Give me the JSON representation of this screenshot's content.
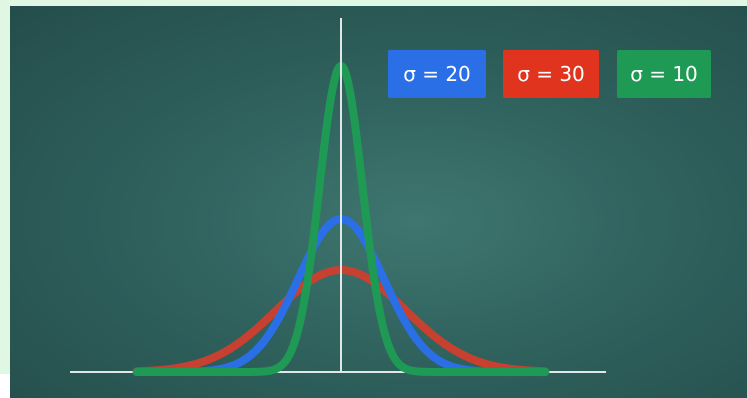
{
  "chart_data": {
    "type": "line",
    "title": "",
    "xlabel": "",
    "ylabel": "",
    "xlim": [
      -100,
      100
    ],
    "series": [
      {
        "name": "σ = 20",
        "color": "#2a6fe6",
        "mean": 0,
        "sigma": 20
      },
      {
        "name": "σ = 30",
        "color": "#c84030",
        "mean": 0,
        "sigma": 30
      },
      {
        "name": "σ = 10",
        "color": "#1f9a54",
        "mean": 0,
        "sigma": 10
      }
    ],
    "legend_position": "top-right",
    "axes": {
      "x_axis_visible": true,
      "y_axis_visible": true,
      "ticks_visible": false
    }
  },
  "legend": [
    {
      "label": "σ = 20",
      "color": "#2a6fe6"
    },
    {
      "label": "σ = 30",
      "color": "#e0341e"
    },
    {
      "label": "σ = 10",
      "color": "#1f9a54"
    }
  ]
}
